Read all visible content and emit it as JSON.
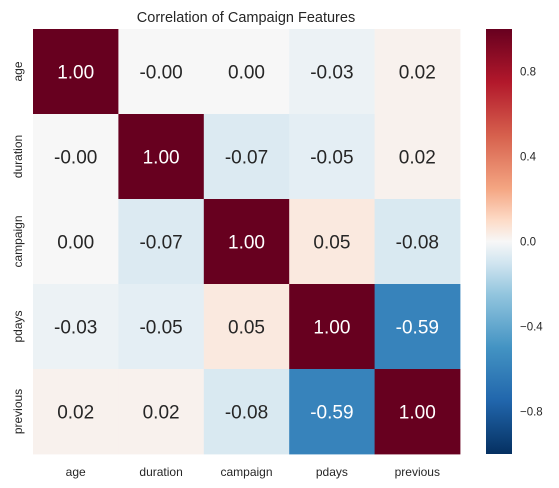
{
  "chart_data": {
    "type": "heatmap",
    "title": "Correlation of Campaign Features",
    "rows": [
      "age",
      "duration",
      "campaign",
      "pdays",
      "previous"
    ],
    "columns": [
      "age",
      "duration",
      "campaign",
      "pdays",
      "previous"
    ],
    "values": [
      [
        1.0,
        -0.0,
        0.0,
        -0.03,
        0.02
      ],
      [
        -0.0,
        1.0,
        -0.07,
        -0.05,
        0.02
      ],
      [
        0.0,
        -0.07,
        1.0,
        0.05,
        -0.08
      ],
      [
        -0.03,
        -0.05,
        0.05,
        1.0,
        -0.59
      ],
      [
        0.02,
        0.02,
        -0.08,
        -0.59,
        1.0
      ]
    ],
    "cell_labels": [
      [
        "1.00",
        "-0.00",
        "0.00",
        "-0.03",
        "0.02"
      ],
      [
        "-0.00",
        "1.00",
        "-0.07",
        "-0.05",
        "0.02"
      ],
      [
        "0.00",
        "-0.07",
        "1.00",
        "0.05",
        "-0.08"
      ],
      [
        "-0.03",
        "-0.05",
        "0.05",
        "1.00",
        "-0.59"
      ],
      [
        "0.02",
        "0.02",
        "-0.08",
        "-0.59",
        "1.00"
      ]
    ],
    "colorbar": {
      "range": [
        -1,
        1
      ],
      "ticks": [
        0.8,
        0.4,
        0.0,
        -0.4,
        -0.8
      ],
      "tick_labels": [
        "0.8",
        "0.4",
        "0.0",
        "−0.4",
        "−0.8"
      ],
      "colormap": "RdBu_r"
    }
  }
}
